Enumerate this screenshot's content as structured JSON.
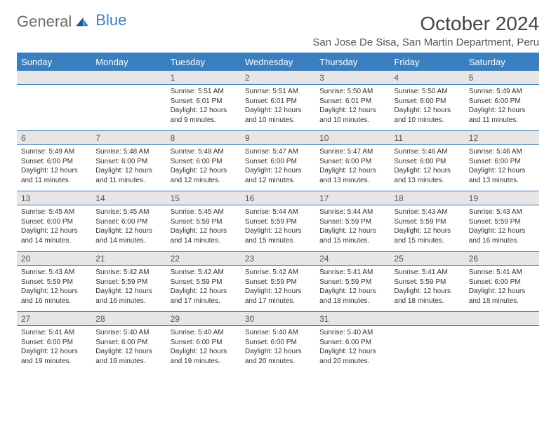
{
  "logo": {
    "text_a": "General",
    "text_b": "Blue"
  },
  "title": "October 2024",
  "location": "San Jose De Sisa, San Martin Department, Peru",
  "colors": {
    "accent": "#3a7fbf",
    "header_text": "#ffffff",
    "daynum_bg": "#e6e6e6",
    "text": "#333333",
    "muted": "#555555",
    "page_bg": "#ffffff"
  },
  "font": {
    "family": "Arial",
    "title_size": 28,
    "location_size": 15,
    "dow_size": 13,
    "daynum_size": 12,
    "cell_size": 10
  },
  "days_of_week": [
    "Sunday",
    "Monday",
    "Tuesday",
    "Wednesday",
    "Thursday",
    "Friday",
    "Saturday"
  ],
  "weeks": [
    [
      null,
      null,
      {
        "n": "1",
        "sunrise": "Sunrise: 5:51 AM",
        "sunset": "Sunset: 6:01 PM",
        "dl1": "Daylight: 12 hours",
        "dl2": "and 9 minutes."
      },
      {
        "n": "2",
        "sunrise": "Sunrise: 5:51 AM",
        "sunset": "Sunset: 6:01 PM",
        "dl1": "Daylight: 12 hours",
        "dl2": "and 10 minutes."
      },
      {
        "n": "3",
        "sunrise": "Sunrise: 5:50 AM",
        "sunset": "Sunset: 6:01 PM",
        "dl1": "Daylight: 12 hours",
        "dl2": "and 10 minutes."
      },
      {
        "n": "4",
        "sunrise": "Sunrise: 5:50 AM",
        "sunset": "Sunset: 6:00 PM",
        "dl1": "Daylight: 12 hours",
        "dl2": "and 10 minutes."
      },
      {
        "n": "5",
        "sunrise": "Sunrise: 5:49 AM",
        "sunset": "Sunset: 6:00 PM",
        "dl1": "Daylight: 12 hours",
        "dl2": "and 11 minutes."
      }
    ],
    [
      {
        "n": "6",
        "sunrise": "Sunrise: 5:49 AM",
        "sunset": "Sunset: 6:00 PM",
        "dl1": "Daylight: 12 hours",
        "dl2": "and 11 minutes."
      },
      {
        "n": "7",
        "sunrise": "Sunrise: 5:48 AM",
        "sunset": "Sunset: 6:00 PM",
        "dl1": "Daylight: 12 hours",
        "dl2": "and 11 minutes."
      },
      {
        "n": "8",
        "sunrise": "Sunrise: 5:48 AM",
        "sunset": "Sunset: 6:00 PM",
        "dl1": "Daylight: 12 hours",
        "dl2": "and 12 minutes."
      },
      {
        "n": "9",
        "sunrise": "Sunrise: 5:47 AM",
        "sunset": "Sunset: 6:00 PM",
        "dl1": "Daylight: 12 hours",
        "dl2": "and 12 minutes."
      },
      {
        "n": "10",
        "sunrise": "Sunrise: 5:47 AM",
        "sunset": "Sunset: 6:00 PM",
        "dl1": "Daylight: 12 hours",
        "dl2": "and 13 minutes."
      },
      {
        "n": "11",
        "sunrise": "Sunrise: 5:46 AM",
        "sunset": "Sunset: 6:00 PM",
        "dl1": "Daylight: 12 hours",
        "dl2": "and 13 minutes."
      },
      {
        "n": "12",
        "sunrise": "Sunrise: 5:46 AM",
        "sunset": "Sunset: 6:00 PM",
        "dl1": "Daylight: 12 hours",
        "dl2": "and 13 minutes."
      }
    ],
    [
      {
        "n": "13",
        "sunrise": "Sunrise: 5:45 AM",
        "sunset": "Sunset: 6:00 PM",
        "dl1": "Daylight: 12 hours",
        "dl2": "and 14 minutes."
      },
      {
        "n": "14",
        "sunrise": "Sunrise: 5:45 AM",
        "sunset": "Sunset: 6:00 PM",
        "dl1": "Daylight: 12 hours",
        "dl2": "and 14 minutes."
      },
      {
        "n": "15",
        "sunrise": "Sunrise: 5:45 AM",
        "sunset": "Sunset: 5:59 PM",
        "dl1": "Daylight: 12 hours",
        "dl2": "and 14 minutes."
      },
      {
        "n": "16",
        "sunrise": "Sunrise: 5:44 AM",
        "sunset": "Sunset: 5:59 PM",
        "dl1": "Daylight: 12 hours",
        "dl2": "and 15 minutes."
      },
      {
        "n": "17",
        "sunrise": "Sunrise: 5:44 AM",
        "sunset": "Sunset: 5:59 PM",
        "dl1": "Daylight: 12 hours",
        "dl2": "and 15 minutes."
      },
      {
        "n": "18",
        "sunrise": "Sunrise: 5:43 AM",
        "sunset": "Sunset: 5:59 PM",
        "dl1": "Daylight: 12 hours",
        "dl2": "and 15 minutes."
      },
      {
        "n": "19",
        "sunrise": "Sunrise: 5:43 AM",
        "sunset": "Sunset: 5:59 PM",
        "dl1": "Daylight: 12 hours",
        "dl2": "and 16 minutes."
      }
    ],
    [
      {
        "n": "20",
        "sunrise": "Sunrise: 5:43 AM",
        "sunset": "Sunset: 5:59 PM",
        "dl1": "Daylight: 12 hours",
        "dl2": "and 16 minutes."
      },
      {
        "n": "21",
        "sunrise": "Sunrise: 5:42 AM",
        "sunset": "Sunset: 5:59 PM",
        "dl1": "Daylight: 12 hours",
        "dl2": "and 16 minutes."
      },
      {
        "n": "22",
        "sunrise": "Sunrise: 5:42 AM",
        "sunset": "Sunset: 5:59 PM",
        "dl1": "Daylight: 12 hours",
        "dl2": "and 17 minutes."
      },
      {
        "n": "23",
        "sunrise": "Sunrise: 5:42 AM",
        "sunset": "Sunset: 5:59 PM",
        "dl1": "Daylight: 12 hours",
        "dl2": "and 17 minutes."
      },
      {
        "n": "24",
        "sunrise": "Sunrise: 5:41 AM",
        "sunset": "Sunset: 5:59 PM",
        "dl1": "Daylight: 12 hours",
        "dl2": "and 18 minutes."
      },
      {
        "n": "25",
        "sunrise": "Sunrise: 5:41 AM",
        "sunset": "Sunset: 5:59 PM",
        "dl1": "Daylight: 12 hours",
        "dl2": "and 18 minutes."
      },
      {
        "n": "26",
        "sunrise": "Sunrise: 5:41 AM",
        "sunset": "Sunset: 6:00 PM",
        "dl1": "Daylight: 12 hours",
        "dl2": "and 18 minutes."
      }
    ],
    [
      {
        "n": "27",
        "sunrise": "Sunrise: 5:41 AM",
        "sunset": "Sunset: 6:00 PM",
        "dl1": "Daylight: 12 hours",
        "dl2": "and 19 minutes."
      },
      {
        "n": "28",
        "sunrise": "Sunrise: 5:40 AM",
        "sunset": "Sunset: 6:00 PM",
        "dl1": "Daylight: 12 hours",
        "dl2": "and 19 minutes."
      },
      {
        "n": "29",
        "sunrise": "Sunrise: 5:40 AM",
        "sunset": "Sunset: 6:00 PM",
        "dl1": "Daylight: 12 hours",
        "dl2": "and 19 minutes."
      },
      {
        "n": "30",
        "sunrise": "Sunrise: 5:40 AM",
        "sunset": "Sunset: 6:00 PM",
        "dl1": "Daylight: 12 hours",
        "dl2": "and 20 minutes."
      },
      {
        "n": "31",
        "sunrise": "Sunrise: 5:40 AM",
        "sunset": "Sunset: 6:00 PM",
        "dl1": "Daylight: 12 hours",
        "dl2": "and 20 minutes."
      },
      null,
      null
    ]
  ]
}
